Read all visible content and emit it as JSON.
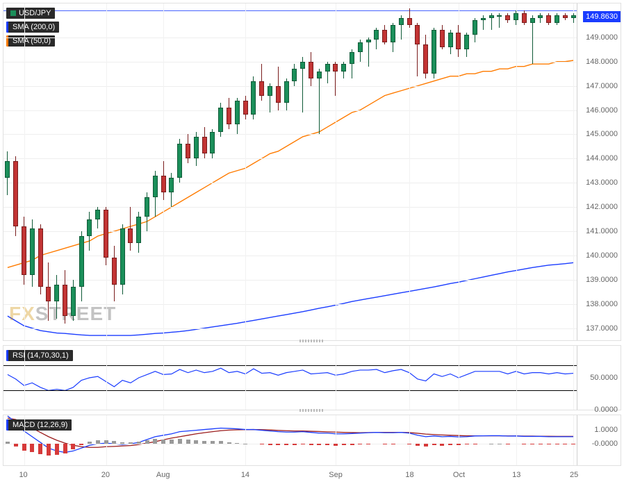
{
  "symbol": "USD/JPY",
  "current_price": "149.8630",
  "legend": {
    "pair": "USD/JPY",
    "sma200": "SMA (200,0)",
    "sma50": "SMA (50,0)",
    "rsi": "RSI (14,70,30,1)",
    "macd": "MACD (12,26,9)"
  },
  "watermark": {
    "fx": "FX",
    "street": "STREET"
  },
  "colors": {
    "sma200": "#1a3cff",
    "sma50": "#ff7b00",
    "candle_up": "#1b8f5a",
    "candle_down": "#c23434",
    "macd_line": "#1a3cff",
    "signal_line": "#9b1c1c",
    "rsi_line": "#1a3cff",
    "hist_pos": "#9a9a9a",
    "hist_neg": "#d63a3a",
    "grid": "#eeeeee",
    "text": "#666666",
    "price_tag_bg": "#1a3cff",
    "background": "#ffffff"
  },
  "price_panel": {
    "ymin": 136.5,
    "ymax": 150.4,
    "yticks": [
      137,
      138,
      139,
      140,
      141,
      142,
      143,
      144,
      145,
      146,
      147,
      148,
      149
    ],
    "ytick_labels": [
      "137.0000",
      "138.0000",
      "139.0000",
      "140.0000",
      "141.0000",
      "142.0000",
      "143.0000",
      "144.0000",
      "145.0000",
      "146.0000",
      "147.0000",
      "148.0000",
      "149.0000"
    ],
    "resistance": 150.1,
    "candles": [
      {
        "o": 143.2,
        "h": 144.3,
        "l": 142.5,
        "c": 143.9,
        "d": "u"
      },
      {
        "o": 143.9,
        "h": 144.1,
        "l": 140.8,
        "c": 141.2,
        "d": "d"
      },
      {
        "o": 141.2,
        "h": 141.6,
        "l": 138.8,
        "c": 139.2,
        "d": "d"
      },
      {
        "o": 139.2,
        "h": 141.5,
        "l": 138.7,
        "c": 141.1,
        "d": "u"
      },
      {
        "o": 141.1,
        "h": 141.3,
        "l": 138.4,
        "c": 138.7,
        "d": "d"
      },
      {
        "o": 138.7,
        "h": 139.7,
        "l": 137.3,
        "c": 138.1,
        "d": "d"
      },
      {
        "o": 138.1,
        "h": 139.2,
        "l": 137.4,
        "c": 138.8,
        "d": "u"
      },
      {
        "o": 138.8,
        "h": 139.4,
        "l": 137.2,
        "c": 137.5,
        "d": "d"
      },
      {
        "o": 137.5,
        "h": 139.0,
        "l": 137.3,
        "c": 138.7,
        "d": "u"
      },
      {
        "o": 138.7,
        "h": 141.0,
        "l": 138.1,
        "c": 140.8,
        "d": "u"
      },
      {
        "o": 140.8,
        "h": 141.8,
        "l": 140.2,
        "c": 141.5,
        "d": "u"
      },
      {
        "o": 141.5,
        "h": 142.0,
        "l": 141.1,
        "c": 141.9,
        "d": "u"
      },
      {
        "o": 141.9,
        "h": 142.0,
        "l": 139.6,
        "c": 139.9,
        "d": "d"
      },
      {
        "o": 139.9,
        "h": 140.4,
        "l": 138.1,
        "c": 138.8,
        "d": "d"
      },
      {
        "o": 138.8,
        "h": 141.3,
        "l": 138.4,
        "c": 141.1,
        "d": "u"
      },
      {
        "o": 141.1,
        "h": 142.0,
        "l": 140.2,
        "c": 140.5,
        "d": "d"
      },
      {
        "o": 140.5,
        "h": 141.8,
        "l": 140.1,
        "c": 141.6,
        "d": "u"
      },
      {
        "o": 141.6,
        "h": 142.6,
        "l": 141.0,
        "c": 142.4,
        "d": "u"
      },
      {
        "o": 142.4,
        "h": 143.5,
        "l": 141.6,
        "c": 143.3,
        "d": "u"
      },
      {
        "o": 143.3,
        "h": 143.9,
        "l": 142.3,
        "c": 142.6,
        "d": "d"
      },
      {
        "o": 142.6,
        "h": 143.4,
        "l": 142.0,
        "c": 143.2,
        "d": "u"
      },
      {
        "o": 143.2,
        "h": 144.8,
        "l": 143.0,
        "c": 144.6,
        "d": "u"
      },
      {
        "o": 144.6,
        "h": 145.0,
        "l": 143.8,
        "c": 144.0,
        "d": "d"
      },
      {
        "o": 144.0,
        "h": 145.1,
        "l": 143.7,
        "c": 144.9,
        "d": "u"
      },
      {
        "o": 144.9,
        "h": 145.3,
        "l": 144.0,
        "c": 144.2,
        "d": "d"
      },
      {
        "o": 144.2,
        "h": 145.2,
        "l": 144.0,
        "c": 145.1,
        "d": "u"
      },
      {
        "o": 145.1,
        "h": 146.3,
        "l": 144.9,
        "c": 146.1,
        "d": "u"
      },
      {
        "o": 146.1,
        "h": 146.5,
        "l": 145.2,
        "c": 145.4,
        "d": "d"
      },
      {
        "o": 145.4,
        "h": 146.5,
        "l": 145.0,
        "c": 146.4,
        "d": "u"
      },
      {
        "o": 146.4,
        "h": 146.6,
        "l": 145.6,
        "c": 145.8,
        "d": "d"
      },
      {
        "o": 145.8,
        "h": 147.4,
        "l": 145.6,
        "c": 147.2,
        "d": "u"
      },
      {
        "o": 147.2,
        "h": 147.9,
        "l": 146.4,
        "c": 146.6,
        "d": "d"
      },
      {
        "o": 146.6,
        "h": 147.1,
        "l": 145.9,
        "c": 147.0,
        "d": "u"
      },
      {
        "o": 147.0,
        "h": 147.8,
        "l": 146.0,
        "c": 146.3,
        "d": "d"
      },
      {
        "o": 146.3,
        "h": 147.3,
        "l": 146.0,
        "c": 147.2,
        "d": "u"
      },
      {
        "o": 147.2,
        "h": 147.9,
        "l": 147.0,
        "c": 147.7,
        "d": "u"
      },
      {
        "o": 147.7,
        "h": 148.2,
        "l": 145.9,
        "c": 148.0,
        "d": "u"
      },
      {
        "o": 148.0,
        "h": 148.4,
        "l": 147.0,
        "c": 147.3,
        "d": "d"
      },
      {
        "o": 147.3,
        "h": 147.7,
        "l": 145.0,
        "c": 147.6,
        "d": "u"
      },
      {
        "o": 147.6,
        "h": 148.0,
        "l": 147.1,
        "c": 147.9,
        "d": "u"
      },
      {
        "o": 147.9,
        "h": 148.0,
        "l": 146.6,
        "c": 147.6,
        "d": "d"
      },
      {
        "o": 147.6,
        "h": 148.0,
        "l": 147.3,
        "c": 147.9,
        "d": "u"
      },
      {
        "o": 147.9,
        "h": 148.5,
        "l": 147.3,
        "c": 148.4,
        "d": "u"
      },
      {
        "o": 148.4,
        "h": 148.9,
        "l": 148.0,
        "c": 148.8,
        "d": "u"
      },
      {
        "o": 148.8,
        "h": 149.0,
        "l": 147.8,
        "c": 148.9,
        "d": "u"
      },
      {
        "o": 148.9,
        "h": 149.4,
        "l": 148.5,
        "c": 149.3,
        "d": "u"
      },
      {
        "o": 149.3,
        "h": 149.5,
        "l": 148.7,
        "c": 148.8,
        "d": "d"
      },
      {
        "o": 148.8,
        "h": 149.6,
        "l": 148.4,
        "c": 149.5,
        "d": "u"
      },
      {
        "o": 149.5,
        "h": 149.9,
        "l": 148.9,
        "c": 149.8,
        "d": "u"
      },
      {
        "o": 149.8,
        "h": 150.2,
        "l": 149.4,
        "c": 149.5,
        "d": "d"
      },
      {
        "o": 149.5,
        "h": 149.6,
        "l": 147.4,
        "c": 148.7,
        "d": "d"
      },
      {
        "o": 148.7,
        "h": 149.1,
        "l": 147.3,
        "c": 147.5,
        "d": "d"
      },
      {
        "o": 147.5,
        "h": 149.4,
        "l": 147.3,
        "c": 149.3,
        "d": "u"
      },
      {
        "o": 149.3,
        "h": 149.5,
        "l": 148.5,
        "c": 148.6,
        "d": "d"
      },
      {
        "o": 148.6,
        "h": 149.3,
        "l": 148.3,
        "c": 149.2,
        "d": "u"
      },
      {
        "o": 149.2,
        "h": 149.5,
        "l": 148.2,
        "c": 148.5,
        "d": "d"
      },
      {
        "o": 148.5,
        "h": 149.2,
        "l": 148.2,
        "c": 149.1,
        "d": "u"
      },
      {
        "o": 149.1,
        "h": 149.8,
        "l": 148.8,
        "c": 149.7,
        "d": "u"
      },
      {
        "o": 149.7,
        "h": 149.9,
        "l": 149.3,
        "c": 149.8,
        "d": "u"
      },
      {
        "o": 149.8,
        "h": 150.0,
        "l": 149.3,
        "c": 149.9,
        "d": "u"
      },
      {
        "o": 149.9,
        "h": 150.0,
        "l": 149.4,
        "c": 149.9,
        "d": "u"
      },
      {
        "o": 149.9,
        "h": 150.0,
        "l": 149.6,
        "c": 149.7,
        "d": "d"
      },
      {
        "o": 149.7,
        "h": 150.1,
        "l": 149.5,
        "c": 150.0,
        "d": "u"
      },
      {
        "o": 150.0,
        "h": 150.1,
        "l": 149.5,
        "c": 149.6,
        "d": "d"
      },
      {
        "o": 149.6,
        "h": 149.9,
        "l": 147.9,
        "c": 149.8,
        "d": "u"
      },
      {
        "o": 149.8,
        "h": 150.0,
        "l": 149.6,
        "c": 149.9,
        "d": "u"
      },
      {
        "o": 149.9,
        "h": 150.0,
        "l": 149.5,
        "c": 149.6,
        "d": "d"
      },
      {
        "o": 149.6,
        "h": 150.0,
        "l": 149.5,
        "c": 149.9,
        "d": "u"
      },
      {
        "o": 149.9,
        "h": 150.0,
        "l": 149.7,
        "c": 149.8,
        "d": "d"
      },
      {
        "o": 149.8,
        "h": 150.0,
        "l": 149.6,
        "c": 149.9,
        "d": "u"
      }
    ],
    "sma50": [
      139.5,
      139.6,
      139.7,
      139.8,
      140.0,
      140.1,
      140.2,
      140.3,
      140.4,
      140.5,
      140.6,
      140.8,
      140.9,
      141.0,
      141.1,
      141.2,
      141.3,
      141.4,
      141.6,
      141.8,
      142.0,
      142.2,
      142.4,
      142.6,
      142.8,
      143.0,
      143.2,
      143.4,
      143.5,
      143.6,
      143.8,
      144.0,
      144.2,
      144.3,
      144.5,
      144.7,
      144.9,
      145.0,
      145.1,
      145.3,
      145.5,
      145.7,
      145.9,
      146.0,
      146.2,
      146.4,
      146.6,
      146.7,
      146.8,
      146.9,
      147.0,
      147.1,
      147.2,
      147.3,
      147.4,
      147.4,
      147.5,
      147.5,
      147.6,
      147.6,
      147.7,
      147.7,
      147.8,
      147.8,
      147.9,
      147.9,
      147.9,
      148.0,
      148.0,
      148.05
    ],
    "sma200": [
      137.5,
      137.3,
      137.1,
      137.0,
      136.9,
      136.85,
      136.8,
      136.78,
      136.75,
      136.72,
      136.7,
      136.7,
      136.7,
      136.7,
      136.7,
      136.7,
      136.72,
      136.75,
      136.78,
      136.8,
      136.83,
      136.86,
      136.9,
      136.95,
      137.0,
      137.05,
      137.1,
      137.15,
      137.2,
      137.26,
      137.32,
      137.38,
      137.44,
      137.5,
      137.56,
      137.62,
      137.68,
      137.75,
      137.82,
      137.88,
      137.95,
      138.02,
      138.1,
      138.16,
      138.22,
      138.28,
      138.34,
      138.4,
      138.46,
      138.52,
      138.58,
      138.64,
      138.7,
      138.77,
      138.84,
      138.9,
      138.97,
      139.04,
      139.11,
      139.18,
      139.25,
      139.32,
      139.38,
      139.44,
      139.5,
      139.55,
      139.6,
      139.63,
      139.66,
      139.7
    ]
  },
  "rsi_panel": {
    "ymin": 0,
    "ymax": 100,
    "yticks": [
      0,
      50
    ],
    "ytick_labels": [
      "0.0000",
      "50.0000"
    ],
    "upper_band": 70,
    "lower_band": 30,
    "values": [
      55,
      48,
      38,
      42,
      35,
      30,
      32,
      30,
      35,
      46,
      50,
      52,
      44,
      36,
      46,
      42,
      50,
      55,
      60,
      55,
      56,
      63,
      58,
      62,
      58,
      60,
      65,
      58,
      60,
      56,
      64,
      57,
      58,
      54,
      58,
      60,
      62,
      56,
      57,
      58,
      54,
      56,
      60,
      62,
      62,
      63,
      58,
      61,
      63,
      58,
      48,
      45,
      56,
      52,
      56,
      50,
      55,
      60,
      60,
      60,
      60,
      56,
      60,
      56,
      58,
      58,
      56,
      58,
      56,
      57
    ]
  },
  "macd_panel": {
    "ymin": -1.5,
    "ymax": 2.0,
    "yticks": [
      0,
      1
    ],
    "ytick_labels": [
      "-0.0000",
      "1.0000"
    ],
    "macd": [
      1.95,
      1.5,
      0.9,
      0.5,
      0.1,
      -0.3,
      -0.5,
      -0.6,
      -0.5,
      -0.3,
      -0.1,
      0.0,
      0.05,
      0.0,
      -0.05,
      0.0,
      0.1,
      0.3,
      0.5,
      0.6,
      0.7,
      0.85,
      0.9,
      0.95,
      1.0,
      1.05,
      1.1,
      1.08,
      1.05,
      1.0,
      1.0,
      0.95,
      0.9,
      0.85,
      0.82,
      0.82,
      0.85,
      0.8,
      0.75,
      0.75,
      0.7,
      0.7,
      0.72,
      0.75,
      0.78,
      0.8,
      0.78,
      0.78,
      0.8,
      0.75,
      0.6,
      0.5,
      0.55,
      0.5,
      0.52,
      0.48,
      0.5,
      0.55,
      0.56,
      0.57,
      0.57,
      0.54,
      0.55,
      0.52,
      0.52,
      0.52,
      0.5,
      0.5,
      0.5,
      0.5
    ],
    "signal": [
      1.8,
      1.7,
      1.4,
      1.1,
      0.8,
      0.5,
      0.25,
      0.05,
      -0.1,
      -0.2,
      -0.25,
      -0.25,
      -0.2,
      -0.18,
      -0.15,
      -0.12,
      -0.05,
      0.05,
      0.15,
      0.28,
      0.4,
      0.5,
      0.6,
      0.7,
      0.78,
      0.85,
      0.92,
      0.96,
      0.98,
      0.99,
      1.0,
      0.99,
      0.97,
      0.94,
      0.92,
      0.9,
      0.9,
      0.88,
      0.86,
      0.84,
      0.82,
      0.8,
      0.79,
      0.78,
      0.79,
      0.8,
      0.8,
      0.8,
      0.8,
      0.79,
      0.74,
      0.68,
      0.65,
      0.62,
      0.6,
      0.58,
      0.56,
      0.56,
      0.56,
      0.56,
      0.56,
      0.55,
      0.55,
      0.54,
      0.54,
      0.53,
      0.53,
      0.52,
      0.52,
      0.52
    ],
    "hist": [
      0.15,
      -0.2,
      -0.5,
      -0.6,
      -0.7,
      -0.8,
      -0.75,
      -0.65,
      -0.4,
      -0.1,
      0.15,
      0.25,
      0.25,
      0.18,
      0.1,
      0.12,
      0.15,
      0.25,
      0.35,
      0.32,
      0.3,
      0.35,
      0.3,
      0.25,
      0.22,
      0.2,
      0.18,
      0.12,
      0.07,
      0.01,
      0.0,
      -0.04,
      -0.07,
      -0.09,
      -0.1,
      -0.08,
      -0.05,
      -0.08,
      -0.11,
      -0.09,
      -0.12,
      -0.1,
      -0.07,
      -0.03,
      -0.01,
      0.0,
      -0.02,
      -0.02,
      0.0,
      -0.04,
      -0.14,
      -0.18,
      -0.1,
      -0.12,
      -0.08,
      -0.1,
      -0.06,
      -0.01,
      0.0,
      0.01,
      0.01,
      -0.01,
      0.0,
      -0.02,
      -0.02,
      -0.01,
      -0.03,
      -0.02,
      -0.02,
      -0.02
    ]
  },
  "xaxis": {
    "n": 70,
    "ticks": [
      {
        "i": 2,
        "label": "10"
      },
      {
        "i": 12,
        "label": "20"
      },
      {
        "i": 19,
        "label": "Aug"
      },
      {
        "i": 29,
        "label": "14"
      },
      {
        "i": 40,
        "label": "Sep"
      },
      {
        "i": 49,
        "label": "18"
      },
      {
        "i": 55,
        "label": "Oct"
      },
      {
        "i": 62,
        "label": "13"
      },
      {
        "i": 69,
        "label": "25"
      }
    ]
  }
}
